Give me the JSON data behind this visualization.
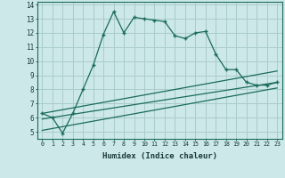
{
  "xlabel": "Humidex (Indice chaleur)",
  "bg_color": "#cce8e8",
  "grid_color": "#aacccc",
  "line_color": "#1a6b5a",
  "xlim": [
    -0.5,
    23.5
  ],
  "ylim": [
    4.5,
    14.2
  ],
  "xticks": [
    0,
    1,
    2,
    3,
    4,
    5,
    6,
    7,
    8,
    9,
    10,
    11,
    12,
    13,
    14,
    15,
    16,
    17,
    18,
    19,
    20,
    21,
    22,
    23
  ],
  "yticks": [
    5,
    6,
    7,
    8,
    9,
    10,
    11,
    12,
    13,
    14
  ],
  "line1_x": [
    0,
    1,
    2,
    3,
    4,
    5,
    6,
    7,
    8,
    9,
    10,
    11,
    12,
    13,
    14,
    15,
    16,
    17,
    18,
    19,
    20,
    21,
    22,
    23
  ],
  "line1_y": [
    6.3,
    6.0,
    4.9,
    6.3,
    8.0,
    9.7,
    11.9,
    13.5,
    12.0,
    13.1,
    13.0,
    12.9,
    12.8,
    11.8,
    11.6,
    12.0,
    12.1,
    10.5,
    9.4,
    9.4,
    8.5,
    8.3,
    8.3,
    8.5
  ],
  "line2_x": [
    0,
    23
  ],
  "line2_y": [
    6.3,
    9.3
  ],
  "line3_x": [
    0,
    23
  ],
  "line3_y": [
    5.9,
    8.5
  ],
  "line4_x": [
    0,
    23
  ],
  "line4_y": [
    5.1,
    8.1
  ]
}
